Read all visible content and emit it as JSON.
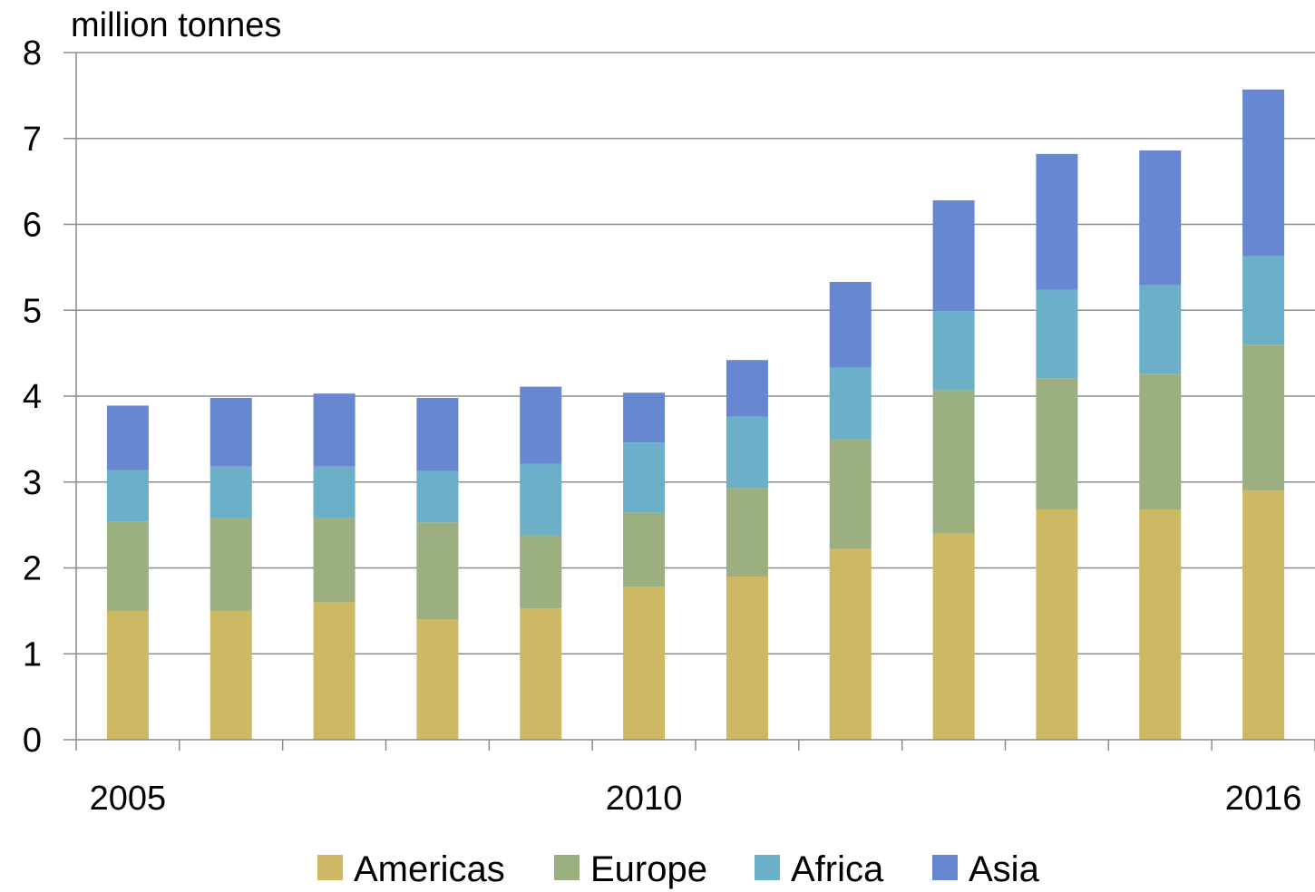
{
  "chart_data": {
    "type": "bar",
    "stacked": true,
    "unit_label": "million tonnes",
    "categories": [
      "2005",
      "2006",
      "2007",
      "2008",
      "2009",
      "2010",
      "2011",
      "2012",
      "2013",
      "2014",
      "2015",
      "2016"
    ],
    "x_tick_labels": [
      {
        "index": 0,
        "label": "2005"
      },
      {
        "index": 5,
        "label": "2010"
      },
      {
        "index": 11,
        "label": "2016"
      }
    ],
    "y_ticks": [
      "0",
      "1",
      "2",
      "3",
      "4",
      "5",
      "6",
      "7",
      "8"
    ],
    "ylim": [
      0,
      8
    ],
    "grid": "horizontal",
    "legend_position": "bottom",
    "series": [
      {
        "name": "Americas",
        "color": "#cdb864",
        "values": [
          1.5,
          1.5,
          1.6,
          1.4,
          1.53,
          1.78,
          1.9,
          2.22,
          2.4,
          2.68,
          2.68,
          2.9
        ]
      },
      {
        "name": "Europe",
        "color": "#9caf80",
        "values": [
          1.04,
          1.08,
          0.98,
          1.13,
          0.85,
          0.86,
          1.03,
          1.28,
          1.67,
          1.53,
          1.58,
          1.7
        ]
      },
      {
        "name": "Africa",
        "color": "#6bb0c8",
        "values": [
          0.6,
          0.6,
          0.6,
          0.6,
          0.83,
          0.82,
          0.83,
          0.83,
          0.92,
          1.03,
          1.03,
          1.03
        ]
      },
      {
        "name": "Asia",
        "color": "#6787d0",
        "values": [
          0.75,
          0.8,
          0.85,
          0.85,
          0.9,
          0.58,
          0.66,
          1.0,
          1.29,
          1.58,
          1.57,
          1.94
        ]
      }
    ]
  }
}
